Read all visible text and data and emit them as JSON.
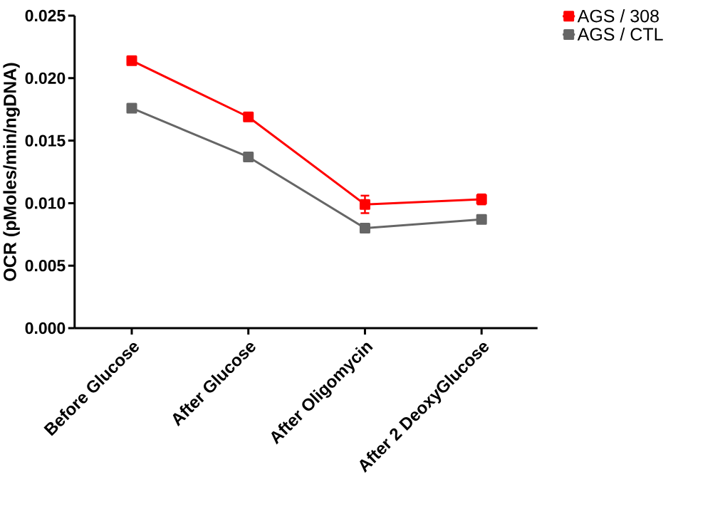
{
  "chart_data": {
    "type": "line",
    "ylabel": "OCR (pMoles/min/ngDNA)",
    "categories": [
      "Before Glucose",
      "After Glucose",
      "After Oligomycin",
      "After 2 DeoxyGlucose"
    ],
    "series": [
      {
        "name": "AGS / 308",
        "color": "#ff0000",
        "values": [
          0.0214,
          0.0169,
          0.0099,
          0.0103
        ],
        "errors": [
          0.0003,
          0.0003,
          0.0007,
          0.0004
        ]
      },
      {
        "name": "AGS / CTL",
        "color": "#666666",
        "values": [
          0.0176,
          0.0137,
          0.008,
          0.0087
        ],
        "errors": [
          0.0003,
          0.0003,
          0.0003,
          0.0003
        ]
      }
    ],
    "ylim": [
      0,
      0.025
    ],
    "yticks": [
      {
        "value": 0,
        "label": "0.000"
      },
      {
        "value": 0.005,
        "label": "0.005"
      },
      {
        "value": 0.01,
        "label": "0.010"
      },
      {
        "value": 0.015,
        "label": "0.015"
      },
      {
        "value": 0.02,
        "label": "0.020"
      },
      {
        "value": 0.025,
        "label": "0.025"
      }
    ],
    "grid": false,
    "legend": "top right",
    "marker": "square",
    "line_style": "solid"
  }
}
